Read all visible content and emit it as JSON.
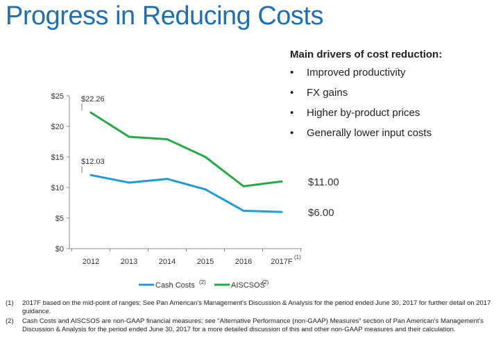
{
  "page": {
    "title": "Progress in Reducing Costs"
  },
  "drivers": {
    "heading": "Main drivers of cost reduction:",
    "bullet_glyph": "•",
    "items": [
      "Improved productivity",
      "FX gains",
      "Higher by-product prices",
      "Generally lower input costs"
    ]
  },
  "chart_data": {
    "type": "line",
    "categories": [
      "2012",
      "2013",
      "2014",
      "2015",
      "2016",
      "2017F"
    ],
    "category_superscripts": [
      "",
      "",
      "",
      "",
      "",
      "(1)"
    ],
    "y_ticks": [
      "$0",
      "$5",
      "$10",
      "$15",
      "$20",
      "$25"
    ],
    "ylim": [
      0,
      25
    ],
    "grid": false,
    "legend_position": "bottom",
    "series": [
      {
        "name": "Cash Costs",
        "name_superscript": "(2)",
        "color": "#1f9bd7",
        "values": [
          12.03,
          10.8,
          11.4,
          9.7,
          6.2,
          6.0
        ],
        "start_label": "$12.03",
        "end_label": "$6.00"
      },
      {
        "name": "AISCSOS",
        "name_superscript": "(2)",
        "color": "#22aa48",
        "values": [
          22.26,
          18.3,
          17.9,
          15.0,
          10.2,
          11.0
        ],
        "start_label": "$22.26",
        "end_label": "$11.00"
      }
    ]
  },
  "footnotes": [
    {
      "num": "(1)",
      "text": "2017F based on the mid-point of ranges; See Pan American's Management's Discussion & Analysis for the period ended June 30, 2017 for further detail on 2017 guidance."
    },
    {
      "num": "(2)",
      "text": "Cash Costs and AISCSOS are non-GAAP financial measures; see \"Alternative Performance (non-GAAP) Measures\" section of Pan American's Management's Discussion & Analysis for the period ended June 30, 2017 for a more detailed discussion of this and other non-GAAP measures and their calculation."
    }
  ]
}
